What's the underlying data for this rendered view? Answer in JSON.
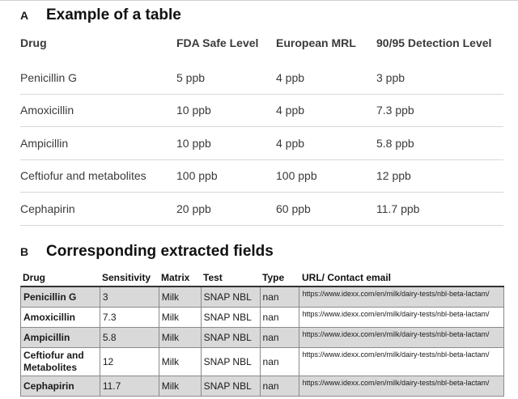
{
  "section_a": {
    "letter": "A",
    "title": "Example of a table",
    "headers": [
      "Drug",
      "FDA Safe Level",
      "European MRL",
      "90/95 Detection Level"
    ],
    "rows": [
      [
        "Penicillin G",
        "5 ppb",
        "4 ppb",
        "3 ppb"
      ],
      [
        "Amoxicillin",
        "10 ppb",
        "4 ppb",
        "7.3 ppb"
      ],
      [
        "Ampicillin",
        "10 ppb",
        "4 ppb",
        "5.8 ppb"
      ],
      [
        "Ceftiofur and metabolites",
        "100 ppb",
        "100 ppb",
        "12 ppb"
      ],
      [
        "Cephapirin",
        "20 ppb",
        "60 ppb",
        "11.7 ppb"
      ]
    ]
  },
  "section_b": {
    "letter": "B",
    "title": "Corresponding extracted fields",
    "headers": [
      "Drug",
      "Sensitivity",
      "Matrix",
      "Test",
      "Type",
      "URL/ Contact email"
    ],
    "rows": [
      [
        "Penicillin G",
        "3",
        "Milk",
        "SNAP NBL",
        "nan",
        "https://www.idexx.com/en/milk/dairy-tests/nbl-beta-lactam/"
      ],
      [
        "Amoxicillin",
        "7.3",
        "Milk",
        "SNAP NBL",
        "nan",
        "https://www.idexx.com/en/milk/dairy-tests/nbl-beta-lactam/"
      ],
      [
        "Ampicillin",
        "5.8",
        "Milk",
        "SNAP NBL",
        "nan",
        "https://www.idexx.com/en/milk/dairy-tests/nbl-beta-lactam/"
      ],
      [
        "Ceftiofur and Metabolites",
        "12",
        "Milk",
        "SNAP NBL",
        "nan",
        "https://www.idexx.com/en/milk/dairy-tests/nbl-beta-lactam/"
      ],
      [
        "Cephapirin",
        "11.7",
        "Milk",
        "SNAP NBL",
        "nan",
        "https://www.idexx.com/en/milk/dairy-tests/nbl-beta-lactam/"
      ]
    ]
  }
}
